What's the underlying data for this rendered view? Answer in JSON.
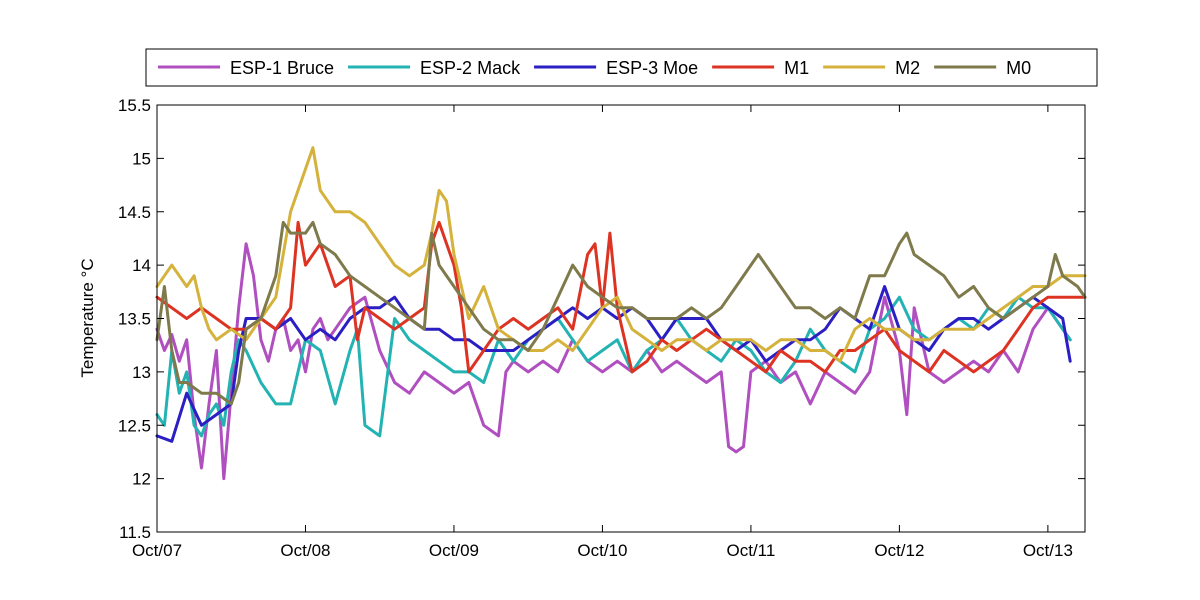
{
  "chart_data": {
    "type": "line",
    "title": "",
    "xlabel": "",
    "ylabel": "Temperature °C",
    "xlim": [
      0,
      6.25
    ],
    "ylim": [
      11.5,
      15.5
    ],
    "x_ticks": [
      {
        "value": 0,
        "label": "Oct/07"
      },
      {
        "value": 1,
        "label": "Oct/08"
      },
      {
        "value": 2,
        "label": "Oct/09"
      },
      {
        "value": 3,
        "label": "Oct/10"
      },
      {
        "value": 4,
        "label": "Oct/11"
      },
      {
        "value": 5,
        "label": "Oct/12"
      },
      {
        "value": 6,
        "label": "Oct/13"
      }
    ],
    "y_ticks": [
      {
        "value": 11.5,
        "label": "11.5"
      },
      {
        "value": 12,
        "label": "12"
      },
      {
        "value": 12.5,
        "label": "12.5"
      },
      {
        "value": 13,
        "label": "13"
      },
      {
        "value": 13.5,
        "label": "13.5"
      },
      {
        "value": 14,
        "label": "14"
      },
      {
        "value": 14.5,
        "label": "14.5"
      },
      {
        "value": 15,
        "label": "15"
      },
      {
        "value": 15.5,
        "label": "15.5"
      }
    ],
    "grid": false,
    "legend_position": "top",
    "series": [
      {
        "name": "ESP-1 Bruce",
        "color": "#b04fbf",
        "x": [
          0,
          0.05,
          0.1,
          0.15,
          0.2,
          0.25,
          0.3,
          0.35,
          0.4,
          0.45,
          0.5,
          0.55,
          0.6,
          0.65,
          0.7,
          0.75,
          0.8,
          0.85,
          0.9,
          0.95,
          1.0,
          1.05,
          1.1,
          1.15,
          1.2,
          1.3,
          1.4,
          1.5,
          1.6,
          1.7,
          1.8,
          1.9,
          2.0,
          2.1,
          2.2,
          2.3,
          2.35,
          2.4,
          2.5,
          2.6,
          2.7,
          2.8,
          2.9,
          3.0,
          3.1,
          3.2,
          3.3,
          3.4,
          3.5,
          3.6,
          3.7,
          3.8,
          3.85,
          3.9,
          3.95,
          4.0,
          4.1,
          4.2,
          4.3,
          4.4,
          4.5,
          4.6,
          4.7,
          4.8,
          4.9,
          5.0,
          5.05,
          5.1,
          5.2,
          5.3,
          5.4,
          5.5,
          5.6,
          5.7,
          5.8,
          5.9,
          6.0,
          6.1,
          6.15
        ],
        "y": [
          13.4,
          13.2,
          13.35,
          13.1,
          13.3,
          12.6,
          12.1,
          12.7,
          13.2,
          12.0,
          12.8,
          13.6,
          14.2,
          13.9,
          13.3,
          13.1,
          13.4,
          13.5,
          13.2,
          13.3,
          13.0,
          13.4,
          13.5,
          13.3,
          13.4,
          13.6,
          13.7,
          13.2,
          12.9,
          12.8,
          13.0,
          12.9,
          12.8,
          12.9,
          12.5,
          12.4,
          13.0,
          13.1,
          13.0,
          13.1,
          13.0,
          13.3,
          13.1,
          13.0,
          13.1,
          13.0,
          13.2,
          13.0,
          13.1,
          13.0,
          12.9,
          13.0,
          12.3,
          12.25,
          12.3,
          13.0,
          13.1,
          12.9,
          13.0,
          12.7,
          13.0,
          12.9,
          12.8,
          13.0,
          13.7,
          13.2,
          12.6,
          13.6,
          13.0,
          12.9,
          13.0,
          13.1,
          13.0,
          13.2,
          13.0,
          13.4,
          13.6,
          13.4,
          13.3
        ]
      },
      {
        "name": "ESP-2 Mack",
        "color": "#23b3b3",
        "x": [
          0,
          0.05,
          0.1,
          0.15,
          0.2,
          0.25,
          0.3,
          0.35,
          0.4,
          0.45,
          0.5,
          0.55,
          0.6,
          0.7,
          0.8,
          0.9,
          1.0,
          1.1,
          1.2,
          1.3,
          1.35,
          1.4,
          1.5,
          1.6,
          1.7,
          1.8,
          1.9,
          2.0,
          2.1,
          2.2,
          2.3,
          2.4,
          2.5,
          2.6,
          2.7,
          2.8,
          2.9,
          3.0,
          3.1,
          3.2,
          3.3,
          3.4,
          3.5,
          3.6,
          3.7,
          3.8,
          3.9,
          4.0,
          4.1,
          4.2,
          4.3,
          4.4,
          4.5,
          4.6,
          4.7,
          4.8,
          4.9,
          5.0,
          5.1,
          5.2,
          5.3,
          5.4,
          5.5,
          5.6,
          5.7,
          5.8,
          5.9,
          6.0,
          6.1,
          6.15
        ],
        "y": [
          12.6,
          12.5,
          13.2,
          12.8,
          13.0,
          12.5,
          12.4,
          12.6,
          12.7,
          12.5,
          13.0,
          13.3,
          13.2,
          12.9,
          12.7,
          12.7,
          13.3,
          13.2,
          12.7,
          13.2,
          13.4,
          12.5,
          12.4,
          13.5,
          13.3,
          13.2,
          13.1,
          13.0,
          13.0,
          12.9,
          13.3,
          13.1,
          13.3,
          13.4,
          13.5,
          13.3,
          13.1,
          13.2,
          13.3,
          13.0,
          13.2,
          13.3,
          13.5,
          13.3,
          13.2,
          13.1,
          13.3,
          13.2,
          13.0,
          12.9,
          13.1,
          13.4,
          13.2,
          13.1,
          13.0,
          13.4,
          13.5,
          13.7,
          13.4,
          13.3,
          13.4,
          13.5,
          13.4,
          13.6,
          13.5,
          13.7,
          13.6,
          13.6,
          13.4,
          13.3
        ]
      },
      {
        "name": "ESP-3 Moe",
        "color": "#2b1fc4",
        "x": [
          0,
          0.1,
          0.2,
          0.3,
          0.4,
          0.5,
          0.55,
          0.6,
          0.7,
          0.8,
          0.9,
          1.0,
          1.1,
          1.2,
          1.3,
          1.4,
          1.5,
          1.6,
          1.7,
          1.8,
          1.9,
          2.0,
          2.1,
          2.2,
          2.3,
          2.4,
          2.5,
          2.6,
          2.7,
          2.8,
          2.9,
          3.0,
          3.1,
          3.2,
          3.3,
          3.4,
          3.5,
          3.6,
          3.7,
          3.8,
          3.9,
          4.0,
          4.1,
          4.2,
          4.3,
          4.4,
          4.5,
          4.6,
          4.7,
          4.8,
          4.9,
          5.0,
          5.1,
          5.2,
          5.3,
          5.4,
          5.5,
          5.6,
          5.7,
          5.8,
          5.9,
          6.0,
          6.1,
          6.15
        ],
        "y": [
          12.4,
          12.35,
          12.8,
          12.5,
          12.6,
          12.7,
          13.2,
          13.5,
          13.5,
          13.4,
          13.5,
          13.3,
          13.4,
          13.3,
          13.5,
          13.6,
          13.6,
          13.7,
          13.5,
          13.4,
          13.4,
          13.3,
          13.3,
          13.2,
          13.2,
          13.2,
          13.3,
          13.4,
          13.5,
          13.6,
          13.5,
          13.6,
          13.5,
          13.6,
          13.5,
          13.3,
          13.5,
          13.5,
          13.5,
          13.3,
          13.2,
          13.3,
          13.1,
          13.2,
          13.3,
          13.3,
          13.4,
          13.6,
          13.5,
          13.4,
          13.8,
          13.4,
          13.3,
          13.2,
          13.4,
          13.5,
          13.5,
          13.4,
          13.5,
          13.6,
          13.7,
          13.6,
          13.5,
          13.1
        ]
      },
      {
        "name": "M1",
        "color": "#dd3322",
        "x": [
          0,
          0.1,
          0.2,
          0.3,
          0.4,
          0.5,
          0.6,
          0.7,
          0.8,
          0.9,
          0.95,
          1.0,
          1.1,
          1.2,
          1.3,
          1.35,
          1.4,
          1.5,
          1.6,
          1.7,
          1.8,
          1.85,
          1.9,
          2.0,
          2.05,
          2.1,
          2.2,
          2.3,
          2.4,
          2.5,
          2.6,
          2.7,
          2.8,
          2.9,
          2.95,
          3.0,
          3.05,
          3.1,
          3.2,
          3.3,
          3.4,
          3.5,
          3.6,
          3.7,
          3.8,
          3.9,
          4.0,
          4.1,
          4.2,
          4.3,
          4.4,
          4.5,
          4.6,
          4.7,
          4.8,
          4.9,
          5.0,
          5.1,
          5.2,
          5.3,
          5.4,
          5.5,
          5.6,
          5.7,
          5.8,
          5.9,
          6.0,
          6.1,
          6.2,
          6.25
        ],
        "y": [
          13.7,
          13.6,
          13.5,
          13.6,
          13.5,
          13.4,
          13.4,
          13.5,
          13.4,
          13.6,
          14.4,
          14.0,
          14.2,
          13.8,
          13.9,
          13.3,
          13.6,
          13.5,
          13.4,
          13.5,
          13.6,
          14.2,
          14.4,
          14.0,
          13.6,
          13.0,
          13.2,
          13.4,
          13.5,
          13.4,
          13.5,
          13.6,
          13.4,
          14.1,
          14.2,
          13.6,
          14.3,
          13.6,
          13.0,
          13.1,
          13.3,
          13.2,
          13.3,
          13.4,
          13.3,
          13.2,
          13.1,
          13.0,
          13.2,
          13.1,
          13.1,
          13.0,
          13.2,
          13.2,
          13.3,
          13.4,
          13.2,
          13.1,
          13.0,
          13.2,
          13.1,
          13.0,
          13.1,
          13.2,
          13.4,
          13.6,
          13.7,
          13.7,
          13.7,
          13.7
        ]
      },
      {
        "name": "M2",
        "color": "#d4b23c",
        "x": [
          0,
          0.05,
          0.1,
          0.15,
          0.2,
          0.25,
          0.3,
          0.35,
          0.4,
          0.5,
          0.6,
          0.7,
          0.8,
          0.9,
          1.0,
          1.05,
          1.1,
          1.15,
          1.2,
          1.3,
          1.4,
          1.5,
          1.6,
          1.7,
          1.8,
          1.85,
          1.9,
          1.95,
          2.0,
          2.05,
          2.1,
          2.2,
          2.3,
          2.4,
          2.5,
          2.6,
          2.7,
          2.8,
          2.9,
          3.0,
          3.1,
          3.2,
          3.3,
          3.4,
          3.5,
          3.6,
          3.7,
          3.8,
          3.9,
          4.0,
          4.1,
          4.2,
          4.3,
          4.4,
          4.5,
          4.6,
          4.7,
          4.8,
          4.9,
          5.0,
          5.1,
          5.2,
          5.3,
          5.4,
          5.5,
          5.6,
          5.7,
          5.8,
          5.9,
          6.0,
          6.1,
          6.2,
          6.25
        ],
        "y": [
          13.8,
          13.9,
          14.0,
          13.9,
          13.8,
          13.9,
          13.6,
          13.4,
          13.3,
          13.4,
          13.3,
          13.5,
          13.7,
          14.5,
          14.9,
          15.1,
          14.7,
          14.6,
          14.5,
          14.5,
          14.4,
          14.2,
          14.0,
          13.9,
          14.0,
          14.3,
          14.7,
          14.6,
          14.1,
          13.8,
          13.5,
          13.8,
          13.4,
          13.3,
          13.2,
          13.2,
          13.3,
          13.2,
          13.4,
          13.6,
          13.7,
          13.4,
          13.3,
          13.2,
          13.3,
          13.3,
          13.2,
          13.3,
          13.3,
          13.3,
          13.2,
          13.3,
          13.3,
          13.2,
          13.2,
          13.1,
          13.4,
          13.5,
          13.4,
          13.4,
          13.3,
          13.3,
          13.4,
          13.4,
          13.4,
          13.5,
          13.6,
          13.7,
          13.8,
          13.8,
          13.9,
          13.9,
          13.9
        ]
      },
      {
        "name": "M0",
        "color": "#7e7a4c",
        "x": [
          0,
          0.05,
          0.1,
          0.15,
          0.2,
          0.3,
          0.4,
          0.5,
          0.55,
          0.6,
          0.7,
          0.8,
          0.85,
          0.9,
          1.0,
          1.05,
          1.1,
          1.2,
          1.3,
          1.4,
          1.5,
          1.6,
          1.7,
          1.8,
          1.85,
          1.9,
          2.0,
          2.1,
          2.2,
          2.3,
          2.4,
          2.5,
          2.6,
          2.7,
          2.8,
          2.9,
          3.0,
          3.1,
          3.2,
          3.3,
          3.4,
          3.5,
          3.6,
          3.7,
          3.8,
          3.9,
          4.0,
          4.05,
          4.1,
          4.2,
          4.3,
          4.4,
          4.5,
          4.6,
          4.7,
          4.8,
          4.9,
          5.0,
          5.05,
          5.1,
          5.2,
          5.3,
          5.4,
          5.5,
          5.6,
          5.7,
          5.8,
          5.9,
          6.0,
          6.05,
          6.1,
          6.2,
          6.25
        ],
        "y": [
          13.3,
          13.8,
          13.2,
          12.9,
          12.9,
          12.8,
          12.8,
          12.7,
          12.9,
          13.4,
          13.5,
          13.9,
          14.4,
          14.3,
          14.3,
          14.4,
          14.2,
          14.1,
          13.9,
          13.8,
          13.7,
          13.6,
          13.5,
          13.4,
          14.3,
          14.0,
          13.8,
          13.6,
          13.4,
          13.3,
          13.3,
          13.2,
          13.4,
          13.7,
          14.0,
          13.8,
          13.7,
          13.6,
          13.6,
          13.5,
          13.5,
          13.5,
          13.6,
          13.5,
          13.6,
          13.8,
          14.0,
          14.1,
          14.0,
          13.8,
          13.6,
          13.6,
          13.5,
          13.6,
          13.5,
          13.9,
          13.9,
          14.2,
          14.3,
          14.1,
          14.0,
          13.9,
          13.7,
          13.8,
          13.6,
          13.5,
          13.6,
          13.7,
          13.8,
          14.1,
          13.9,
          13.8,
          13.7
        ]
      }
    ]
  }
}
